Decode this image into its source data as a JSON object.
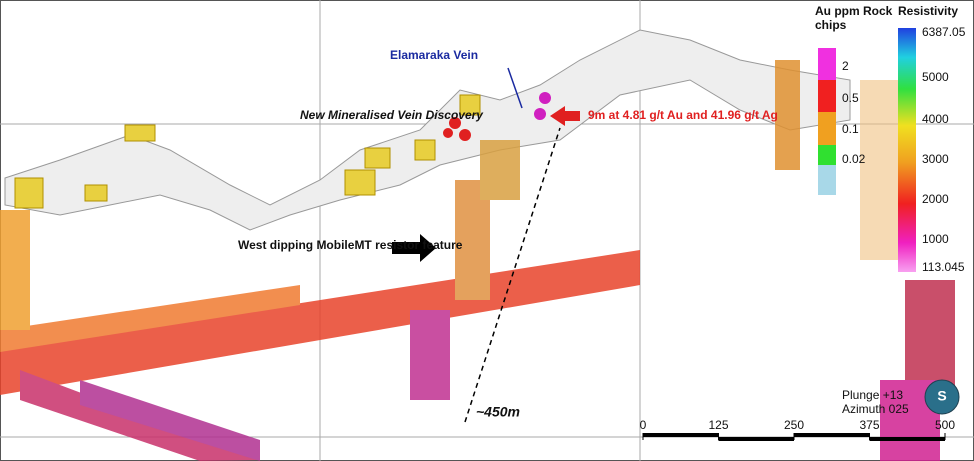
{
  "annotations": {
    "vein_name": "Elamaraka Vein",
    "discovery": "New Mineralised Vein Discovery",
    "intercept": "9m at 4.81 g/t Au and 41.96 g/t Ag",
    "resistor": "West dipping MobileMT resistor feature",
    "distance": "~450m"
  },
  "au_legend": {
    "title": "Au ppm Rock chips",
    "labels": [
      2,
      0.5,
      0.1,
      0.02
    ]
  },
  "resistivity_legend": {
    "title": "Resistivity",
    "labels": [
      6387.05,
      5000,
      4000,
      3000,
      2000,
      1000,
      113.045
    ]
  },
  "view": {
    "plunge": "Plunge +13",
    "azimuth": "Azimuth 025",
    "compass": "S"
  },
  "scale_bar": {
    "ticks": [
      0,
      125,
      250,
      375,
      500
    ]
  }
}
